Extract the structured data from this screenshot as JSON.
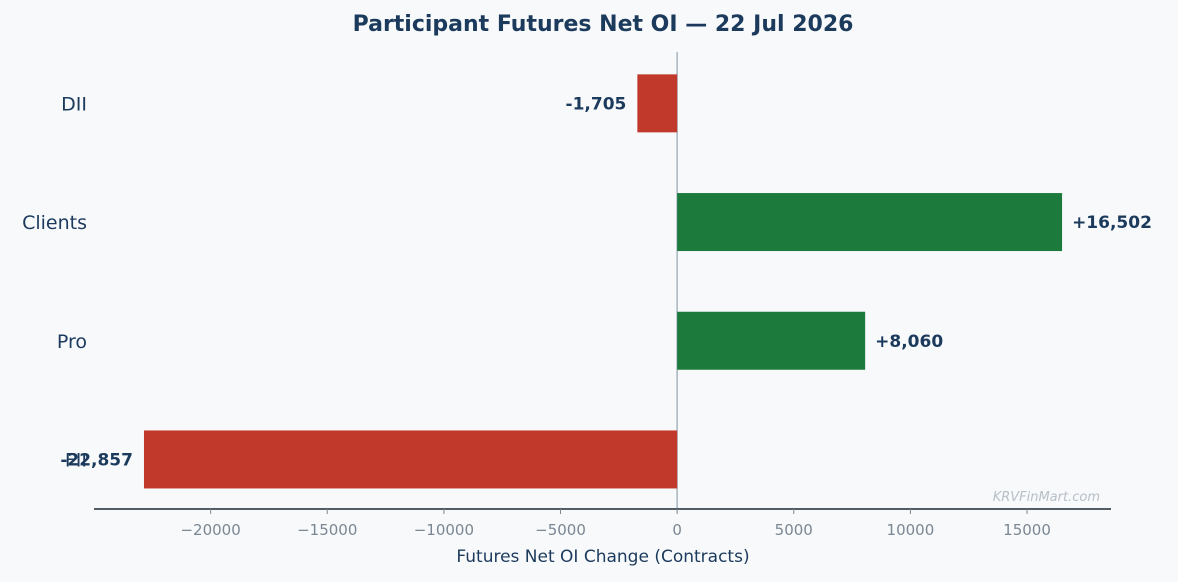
{
  "chart_data": {
    "type": "bar",
    "orientation": "horizontal",
    "title": "Participant Futures Net OI — 22 Jul 2026",
    "xlabel": "Futures Net OI Change (Contracts)",
    "ylabel": "",
    "categories": [
      "DII",
      "Clients",
      "Pro",
      "FII"
    ],
    "values": [
      -1705,
      16502,
      8060,
      -22857
    ],
    "value_labels": [
      "-1,705",
      "+16,502",
      "+8,060",
      "-22,857"
    ],
    "x_ticks": [
      -20000,
      -15000,
      -10000,
      -5000,
      0,
      5000,
      10000,
      15000
    ],
    "x_tick_labels": [
      "−20000",
      "−15000",
      "−10000",
      "−5000",
      "0",
      "5000",
      "10000",
      "15000"
    ],
    "xlim": [
      -25000,
      18600
    ],
    "grid": false,
    "legend": "none",
    "watermark": "KRVFinMart.com"
  },
  "colors": {
    "positive": "#1c7a3d",
    "negative": "#c0392b",
    "text_dark": "#1b3a5c",
    "tick_text": "#7a8793",
    "zero_line": "#a9b4be",
    "axis_line": "#1f2933",
    "watermark": "#b7bfc7"
  }
}
